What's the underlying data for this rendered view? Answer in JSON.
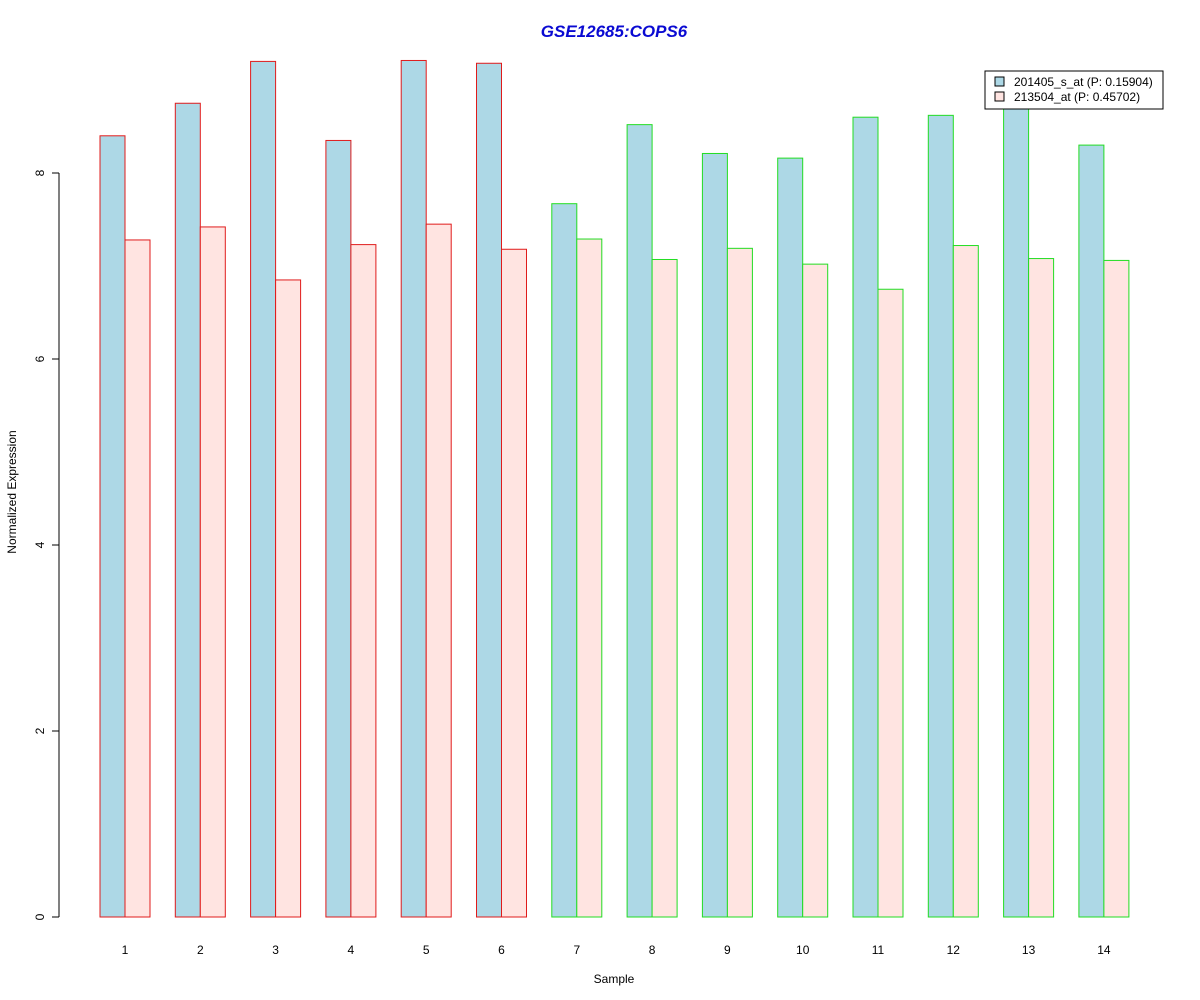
{
  "chart_data": {
    "type": "bar",
    "title": "GSE12685:COPS6",
    "xlabel": "Sample",
    "ylabel": "Normalized Expression",
    "categories": [
      "1",
      "2",
      "3",
      "4",
      "5",
      "6",
      "7",
      "8",
      "9",
      "10",
      "11",
      "12",
      "13",
      "14"
    ],
    "yticks": [
      "0",
      "2",
      "4",
      "6",
      "8"
    ],
    "ylim": [
      0,
      9.2
    ],
    "grid": false,
    "legend_position": "top-right",
    "group_border_colors": [
      "#e01b1b",
      "#e01b1b",
      "#e01b1b",
      "#e01b1b",
      "#e01b1b",
      "#e01b1b",
      "#22dd22",
      "#22dd22",
      "#22dd22",
      "#22dd22",
      "#22dd22",
      "#22dd22",
      "#22dd22",
      "#22dd22"
    ],
    "series": [
      {
        "name": "201405_s_at (P: 0.15904)",
        "color": "#add8e6",
        "values": [
          8.4,
          8.75,
          9.2,
          8.35,
          9.21,
          9.18,
          7.67,
          8.52,
          8.21,
          8.16,
          8.6,
          8.62,
          8.73,
          8.3
        ]
      },
      {
        "name": "213504_at (P: 0.45702)",
        "color": "#ffe4e1",
        "values": [
          7.28,
          7.42,
          6.85,
          7.23,
          7.45,
          7.18,
          7.29,
          7.07,
          7.19,
          7.02,
          6.75,
          7.22,
          7.08,
          7.06
        ]
      }
    ]
  },
  "colors": {
    "title": "#0a0ad2",
    "axis": "#000000"
  }
}
